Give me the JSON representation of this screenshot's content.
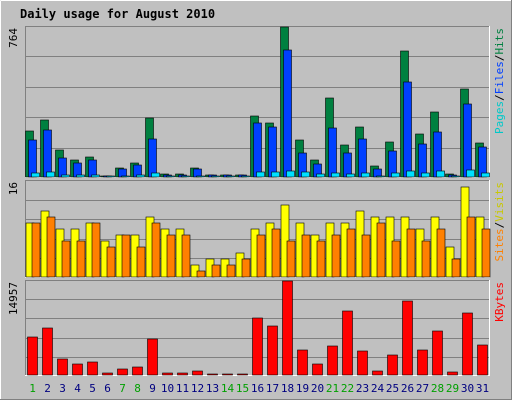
{
  "chart_data": {
    "type": "bar",
    "title": "Daily usage for August 2010",
    "categories": [
      "1",
      "2",
      "3",
      "4",
      "5",
      "6",
      "7",
      "8",
      "9",
      "10",
      "11",
      "12",
      "13",
      "14",
      "15",
      "16",
      "17",
      "18",
      "19",
      "20",
      "21",
      "22",
      "23",
      "24",
      "25",
      "26",
      "27",
      "28",
      "29",
      "30",
      "31"
    ],
    "weekend_days": [
      "1",
      "7",
      "8",
      "14",
      "15",
      "21",
      "22",
      "28",
      "29"
    ],
    "panels": [
      {
        "max_label": "764",
        "max": 764,
        "grid": true,
        "legend": [
          "Pages",
          "/",
          "Files",
          "/",
          "Hits"
        ],
        "series": [
          {
            "name": "Hits",
            "color": "#008040",
            "values": [
              235,
              290,
              135,
              85,
              100,
              5,
              45,
              70,
              300,
              15,
              15,
              45,
              10,
              10,
              10,
              310,
              275,
              764,
              190,
              85,
              400,
              165,
              255,
              55,
              180,
              640,
              220,
              330,
              15,
              450,
              175
            ]
          },
          {
            "name": "Files",
            "color": "#0040ff",
            "values": [
              190,
              240,
              95,
              70,
              85,
              5,
              40,
              60,
              195,
              10,
              10,
              40,
              8,
              8,
              8,
              275,
              255,
              645,
              120,
              65,
              250,
              120,
              195,
              40,
              130,
              485,
              170,
              230,
              10,
              370,
              155
            ]
          },
          {
            "name": "Pages",
            "color": "#00e0ff",
            "values": [
              20,
              25,
              12,
              10,
              12,
              2,
              5,
              8,
              22,
              3,
              3,
              6,
              2,
              2,
              2,
              28,
              25,
              30,
              25,
              14,
              22,
              14,
              18,
              6,
              18,
              30,
              20,
              30,
              4,
              35,
              20
            ]
          }
        ]
      },
      {
        "max_label": "16",
        "max": 16,
        "grid": true,
        "legend": [
          "Sites",
          "/",
          "Visits"
        ],
        "series": [
          {
            "name": "Visits",
            "color": "#ffff00",
            "values": [
              9,
              11,
              8,
              8,
              9,
              6,
              7,
              7,
              10,
              8,
              8,
              2,
              3,
              3,
              4,
              8,
              9,
              12,
              9,
              7,
              9,
              9,
              11,
              10,
              10,
              10,
              8,
              10,
              5,
              15,
              10
            ]
          },
          {
            "name": "Sites",
            "color": "#ff8000",
            "values": [
              9,
              10,
              6,
              6,
              9,
              5,
              7,
              5,
              9,
              7,
              7,
              1,
              2,
              2,
              3,
              7,
              8,
              6,
              7,
              6,
              7,
              8,
              7,
              9,
              6,
              8,
              6,
              8,
              3,
              10,
              8
            ]
          }
        ]
      },
      {
        "max_label": "14957",
        "max": 14957,
        "grid": true,
        "legend": [
          "KBytes"
        ],
        "series": [
          {
            "name": "KBytes",
            "color": "#ff0000",
            "values": [
              6000,
              7500,
              2500,
              1800,
              2000,
              250,
              900,
              1200,
              5800,
              250,
              250,
              700,
              200,
              200,
              200,
              9000,
              7800,
              14957,
              3900,
              1800,
              4600,
              10200,
              3800,
              700,
              3200,
              11800,
              3900,
              7000,
              450,
              9800,
              4700
            ]
          }
        ]
      }
    ],
    "legend_colors": {
      "Pages": "#00c8c8",
      "Files": "#0040ff",
      "Hits": "#008040",
      "Sites": "#ff8000",
      "Visits": "#c8c800",
      "KBytes": "#ff0000",
      "slash": "#000000"
    },
    "colors": {
      "title": "#0000ff",
      "frame": "#c0c0c0",
      "plot_bg": "#c0c0c0",
      "grid": "#808080",
      "weekday_label": "#000080",
      "weekend_label": "#00a000"
    }
  }
}
